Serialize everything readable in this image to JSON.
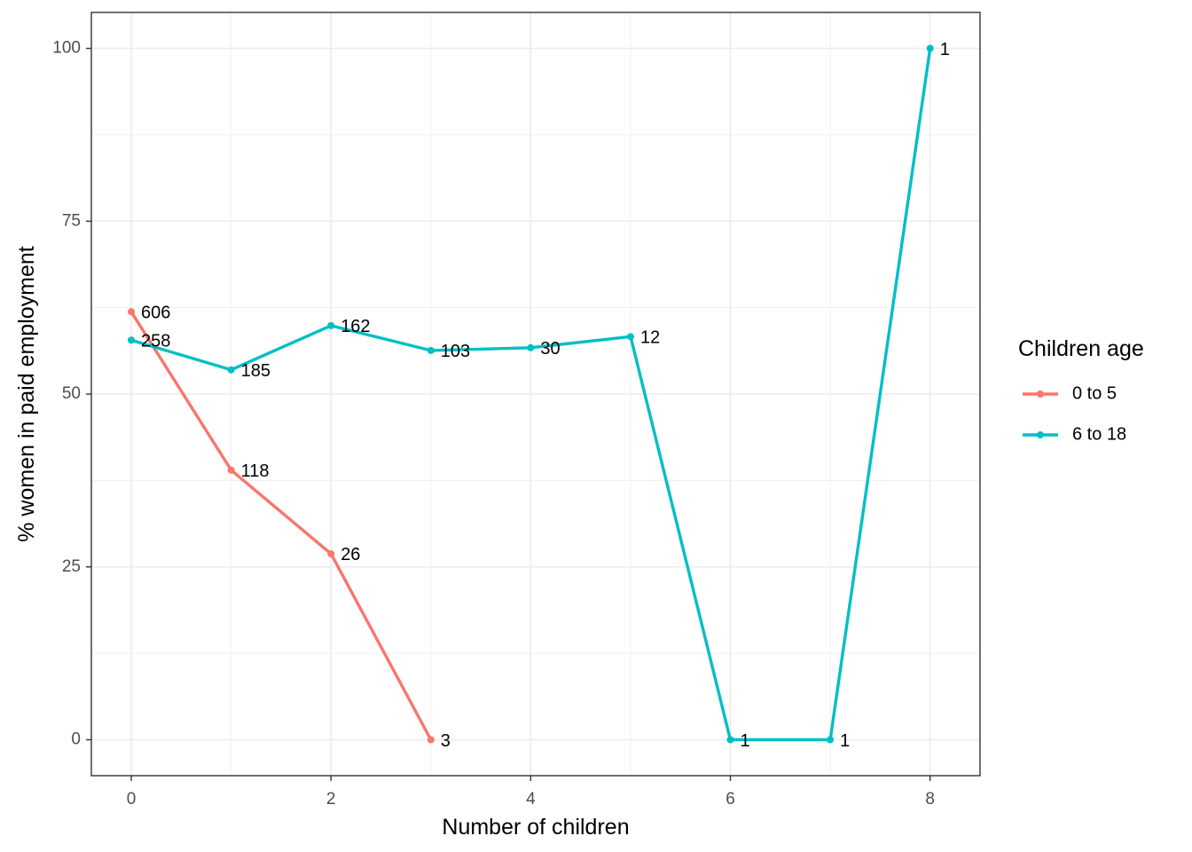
{
  "chart_data": {
    "type": "line",
    "title": "",
    "xlabel": "Number of children",
    "ylabel": "% women in paid employment",
    "xlim": [
      -0.4,
      8.5
    ],
    "ylim": [
      -5.2,
      105.2
    ],
    "x_ticks": [
      0,
      2,
      4,
      6,
      8
    ],
    "x_minor_ticks": [
      1,
      3,
      5,
      7
    ],
    "y_ticks": [
      0,
      25,
      50,
      75,
      100
    ],
    "y_minor_ticks": [
      12.5,
      37.5,
      62.5,
      87.5
    ],
    "grid": true,
    "legend": {
      "title": "Children age",
      "position": "right"
    },
    "series": [
      {
        "name": "0 to 5",
        "color": "#F8766D",
        "points": [
          {
            "x": 0,
            "y": 61.9,
            "label": "606"
          },
          {
            "x": 1,
            "y": 39.0,
            "label": "118"
          },
          {
            "x": 2,
            "y": 26.9,
            "label": "26"
          },
          {
            "x": 3,
            "y": 0.0,
            "label": "3"
          }
        ]
      },
      {
        "name": "6 to 18",
        "color": "#00BFC4",
        "points": [
          {
            "x": 0,
            "y": 57.8,
            "label": "258"
          },
          {
            "x": 1,
            "y": 53.5,
            "label": "185"
          },
          {
            "x": 2,
            "y": 59.9,
            "label": "162"
          },
          {
            "x": 3,
            "y": 56.3,
            "label": "103"
          },
          {
            "x": 4,
            "y": 56.7,
            "label": "30"
          },
          {
            "x": 5,
            "y": 58.3,
            "label": "12"
          },
          {
            "x": 6,
            "y": 0.0,
            "label": "1"
          },
          {
            "x": 7,
            "y": 0.0,
            "label": "1"
          },
          {
            "x": 8,
            "y": 100.0,
            "label": "1"
          }
        ]
      }
    ]
  }
}
